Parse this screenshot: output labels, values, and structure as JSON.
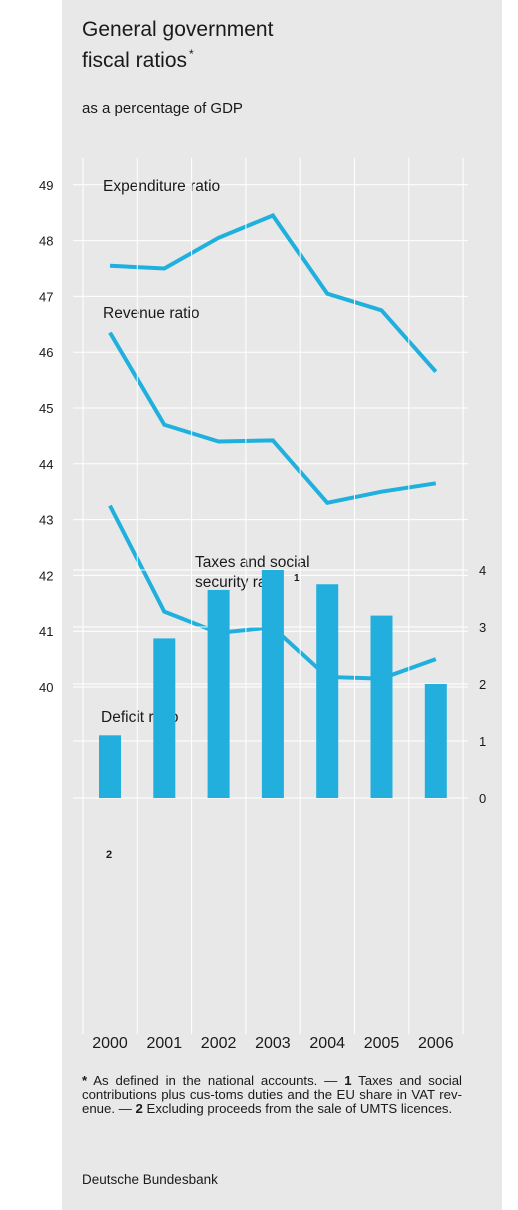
{
  "title_line1": "General government",
  "title_line2": "fiscal ratios",
  "title_mark": "*",
  "subtitle": "as a percentage of GDP",
  "notes": {
    "star": "*",
    "text1": " As defined in the national accounts. — ",
    "n1": "1",
    "text2": " Taxes and social contributions plus cus-toms duties and the EU share in VAT rev-enue. — ",
    "n2": "2",
    "text3": " Excluding proceeds from the sale of UMTS licences."
  },
  "source": "Deutsche Bundesbank",
  "colors": {
    "line": "#1fb0de",
    "bar": "#23afdd",
    "grid": "#ffffff",
    "text": "#1a1a1a"
  },
  "chart_data": [
    {
      "type": "line",
      "x": [
        "2000",
        "2001",
        "2002",
        "2003",
        "2004",
        "2005",
        "2006"
      ],
      "ylim": [
        40,
        49
      ],
      "yticks": [
        "40",
        "41",
        "42",
        "43",
        "44",
        "45",
        "46",
        "47",
        "48",
        "49"
      ],
      "series": [
        {
          "name": "Expenditure ratio",
          "values": [
            47.55,
            47.5,
            48.05,
            48.45,
            47.05,
            46.75,
            45.65
          ]
        },
        {
          "name": "Revenue ratio",
          "values": [
            46.35,
            44.7,
            44.4,
            44.42,
            43.3,
            43.5,
            43.65
          ]
        },
        {
          "name": "Taxes and social security ratio",
          "name_line1": "Taxes and social",
          "name_line2": "security ratio",
          "name_mark": "1",
          "values": [
            43.25,
            41.35,
            40.97,
            41.07,
            40.18,
            40.15,
            40.5
          ]
        }
      ],
      "grid": true
    },
    {
      "type": "bar",
      "title": "Deficit ratio",
      "categories": [
        "2000",
        "2001",
        "2002",
        "2003",
        "2004",
        "2005",
        "2006"
      ],
      "values": [
        1.1,
        2.8,
        3.65,
        4.0,
        3.75,
        3.2,
        2.0
      ],
      "ylim": [
        0,
        4
      ],
      "yticks": [
        "0",
        "1",
        "2",
        "3",
        "4"
      ],
      "annotations": [
        {
          "category": "2000",
          "text": "2"
        }
      ],
      "grid": true
    }
  ]
}
